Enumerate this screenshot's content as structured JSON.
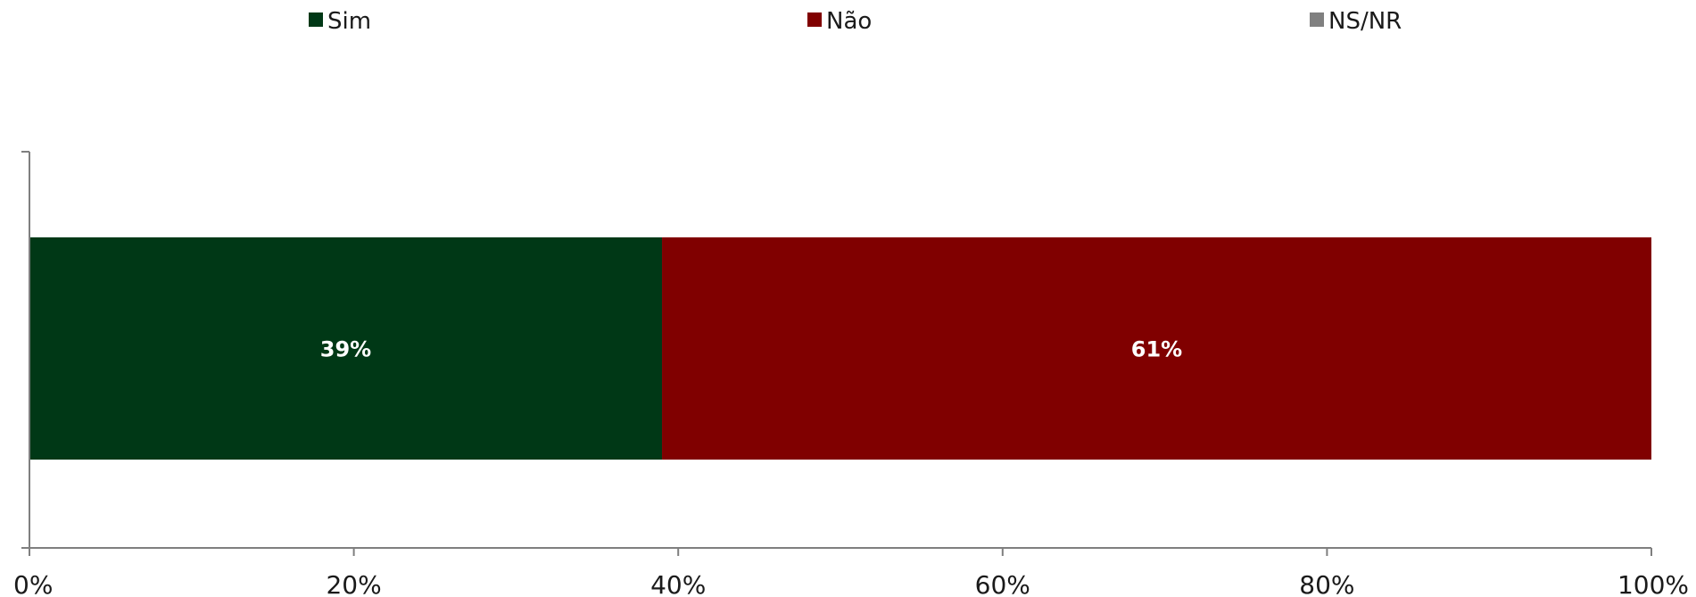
{
  "chart_data": {
    "type": "bar",
    "orientation": "horizontal",
    "stacked": true,
    "categories": [
      ""
    ],
    "series": [
      {
        "name": "Sim",
        "values": [
          39
        ],
        "color": "#003816"
      },
      {
        "name": "Não",
        "values": [
          61
        ],
        "color": "#800000"
      },
      {
        "name": "NS/NR",
        "values": [
          0
        ],
        "color": "#808080"
      }
    ],
    "data_labels": [
      "39%",
      "61%"
    ],
    "xlim": [
      0,
      100
    ],
    "x_ticks": [
      "0%",
      "20%",
      "40%",
      "60%",
      "80%",
      "100%"
    ],
    "legend_position": "top",
    "grid": false,
    "title": "",
    "xlabel": "",
    "ylabel": ""
  }
}
